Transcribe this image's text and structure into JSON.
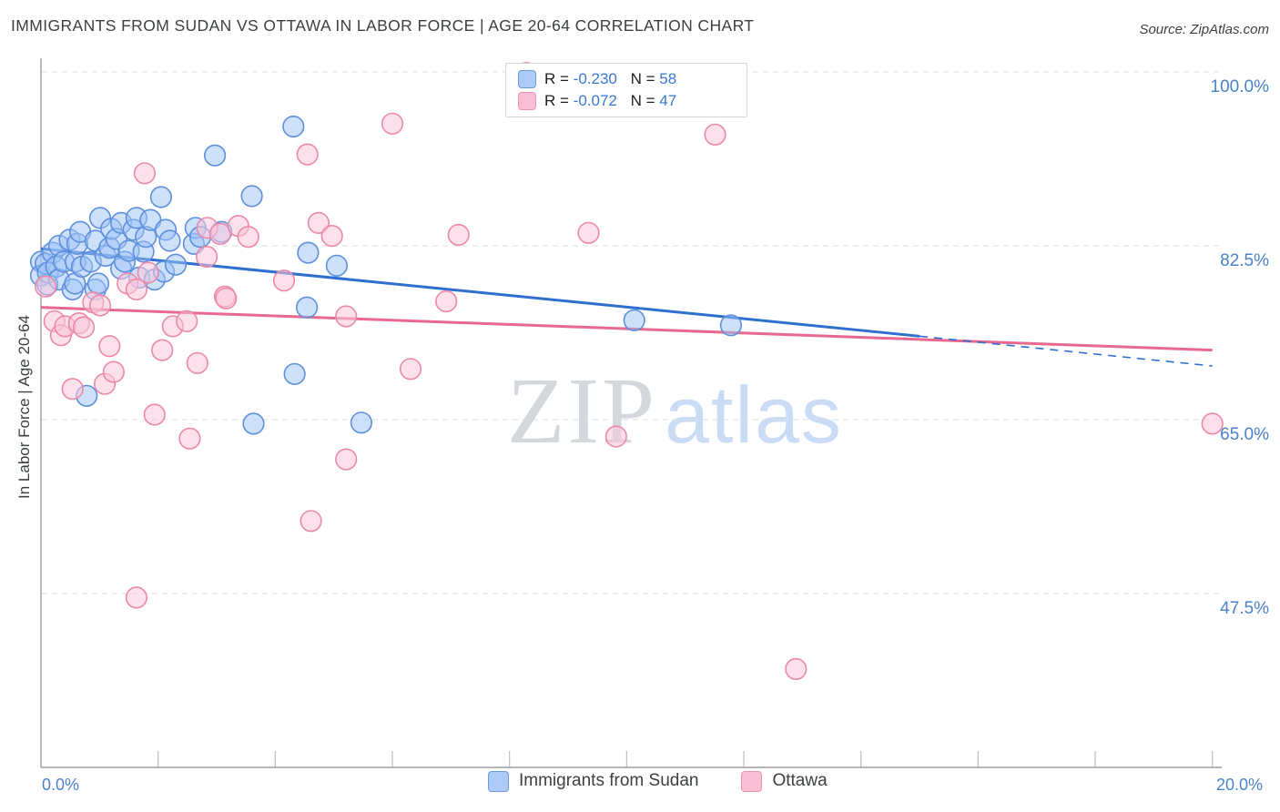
{
  "title": "IMMIGRANTS FROM SUDAN VS OTTAWA IN LABOR FORCE | AGE 20-64 CORRELATION CHART",
  "source": "Source: ZipAtlas.com",
  "watermark": {
    "zip": "ZIP",
    "atlas": "atlas"
  },
  "y_axis": {
    "title": "In Labor Force | Age 20-64",
    "labels": [
      {
        "text": "100.0%",
        "value": 100.0
      },
      {
        "text": "82.5%",
        "value": 82.5
      },
      {
        "text": "65.0%",
        "value": 65.0
      },
      {
        "text": "47.5%",
        "value": 47.5
      }
    ]
  },
  "x_axis": {
    "min_label": "0.0%",
    "max_label": "20.0%",
    "min": 0,
    "max": 20,
    "tick_step": 2
  },
  "legend_box": {
    "rows": [
      {
        "series": "Immigrants from Sudan",
        "r_prefix": "R = ",
        "r_value": "-0.230",
        "n_prefix": "N = ",
        "n_value": "58"
      },
      {
        "series": "Ottawa",
        "r_prefix": "R = ",
        "r_value": "-0.072",
        "n_prefix": "N = ",
        "n_value": "47"
      }
    ]
  },
  "bottom_legend": [
    {
      "label": "Immigrants from Sudan"
    },
    {
      "label": "Ottawa"
    }
  ],
  "colors": {
    "blue_fill": "rgba(158,196,245,0.5)",
    "blue_stroke": "#5e90dd",
    "pink_fill": "rgba(250,198,218,0.55)",
    "pink_stroke": "#ec89a9",
    "blue_trend": "#2e6fd0",
    "pink_trend": "#e8688f",
    "gridline": "#dcdcdc",
    "axis": "#9e9e9e",
    "tick": "#bdbdbd",
    "label_blue": "#4a83cb"
  },
  "chart_data": {
    "type": "scatter",
    "title": "Immigrants from Sudan vs Ottawa In Labor Force | Age 20-64 Correlation Chart",
    "xlabel": "Immigrants from Sudan (%)",
    "ylabel": "In Labor Force | Age 20-64",
    "xlim": [
      0,
      20
    ],
    "ylim": [
      30,
      102.5
    ],
    "x_units": "percent",
    "y_units": "percent",
    "grid": "horizontal-dashed",
    "legend_position": "bottom",
    "series": [
      {
        "name": "Immigrants from Sudan",
        "R": -0.23,
        "N": 58,
        "points": [
          [
            0.0,
            80.9
          ],
          [
            0.0,
            79.5
          ],
          [
            0.08,
            80.7
          ],
          [
            0.11,
            78.6
          ],
          [
            0.12,
            79.8
          ],
          [
            0.2,
            81.8
          ],
          [
            0.26,
            80.4
          ],
          [
            0.31,
            82.5
          ],
          [
            0.31,
            79.1
          ],
          [
            0.39,
            80.9
          ],
          [
            0.49,
            83.1
          ],
          [
            0.54,
            78.1
          ],
          [
            0.58,
            78.7
          ],
          [
            0.59,
            80.9
          ],
          [
            0.62,
            82.7
          ],
          [
            0.67,
            83.9
          ],
          [
            0.7,
            80.4
          ],
          [
            0.78,
            67.4
          ],
          [
            0.85,
            80.9
          ],
          [
            0.93,
            83.0
          ],
          [
            0.93,
            78.1
          ],
          [
            0.98,
            78.7
          ],
          [
            1.01,
            85.3
          ],
          [
            1.1,
            81.5
          ],
          [
            1.17,
            82.3
          ],
          [
            1.2,
            84.2
          ],
          [
            1.29,
            83.2
          ],
          [
            1.37,
            84.8
          ],
          [
            1.37,
            80.2
          ],
          [
            1.43,
            80.9
          ],
          [
            1.5,
            82.0
          ],
          [
            1.58,
            84.1
          ],
          [
            1.63,
            85.3
          ],
          [
            1.68,
            79.3
          ],
          [
            1.75,
            81.9
          ],
          [
            1.79,
            83.4
          ],
          [
            1.87,
            85.1
          ],
          [
            1.94,
            79.1
          ],
          [
            2.05,
            87.4
          ],
          [
            2.1,
            79.9
          ],
          [
            2.13,
            84.1
          ],
          [
            2.2,
            83.0
          ],
          [
            2.3,
            80.6
          ],
          [
            2.61,
            82.7
          ],
          [
            2.64,
            84.3
          ],
          [
            2.72,
            83.4
          ],
          [
            2.97,
            91.6
          ],
          [
            3.08,
            83.9
          ],
          [
            3.6,
            87.5
          ],
          [
            3.63,
            64.6
          ],
          [
            4.31,
            94.5
          ],
          [
            4.33,
            69.6
          ],
          [
            4.54,
            76.3
          ],
          [
            4.56,
            81.8
          ],
          [
            5.05,
            80.5
          ],
          [
            5.47,
            64.7
          ],
          [
            10.13,
            75.0
          ],
          [
            11.78,
            74.5
          ]
        ],
        "trend": {
          "x_start": 0,
          "y_start": 82.2,
          "x_solid_end": 15.0,
          "y_solid_end": 73.4,
          "x_dash_end": 20,
          "y_dash_end": 70.4
        }
      },
      {
        "name": "Ottawa",
        "R": -0.072,
        "N": 47,
        "points": [
          [
            0.08,
            78.4
          ],
          [
            0.23,
            74.9
          ],
          [
            0.34,
            73.5
          ],
          [
            0.41,
            74.4
          ],
          [
            0.54,
            68.1
          ],
          [
            0.65,
            74.7
          ],
          [
            0.73,
            74.3
          ],
          [
            0.89,
            76.8
          ],
          [
            1.01,
            76.5
          ],
          [
            1.09,
            68.6
          ],
          [
            1.17,
            72.4
          ],
          [
            1.24,
            69.8
          ],
          [
            1.48,
            78.7
          ],
          [
            1.63,
            78.1
          ],
          [
            1.63,
            47.1
          ],
          [
            1.77,
            89.8
          ],
          [
            1.83,
            79.8
          ],
          [
            1.94,
            65.5
          ],
          [
            2.07,
            72.0
          ],
          [
            2.25,
            74.4
          ],
          [
            2.49,
            74.9
          ],
          [
            2.54,
            63.1
          ],
          [
            2.67,
            70.7
          ],
          [
            2.83,
            81.4
          ],
          [
            2.84,
            84.3
          ],
          [
            3.06,
            83.7
          ],
          [
            3.14,
            77.4
          ],
          [
            3.16,
            77.2
          ],
          [
            3.37,
            84.5
          ],
          [
            3.54,
            83.4
          ],
          [
            4.15,
            79.0
          ],
          [
            4.55,
            91.7
          ],
          [
            4.61,
            54.8
          ],
          [
            4.74,
            84.8
          ],
          [
            4.97,
            83.5
          ],
          [
            5.21,
            61.0
          ],
          [
            5.21,
            75.4
          ],
          [
            6.0,
            94.8
          ],
          [
            6.31,
            70.1
          ],
          [
            6.92,
            76.9
          ],
          [
            7.13,
            83.6
          ],
          [
            8.29,
            99.9
          ],
          [
            9.35,
            83.8
          ],
          [
            9.82,
            63.3
          ],
          [
            11.51,
            93.7
          ],
          [
            12.89,
            39.9
          ],
          [
            20.0,
            64.6
          ]
        ],
        "trend": {
          "x_start": 0,
          "y_start": 76.3,
          "x_solid_end": 20,
          "y_solid_end": 72.0
        }
      }
    ]
  }
}
